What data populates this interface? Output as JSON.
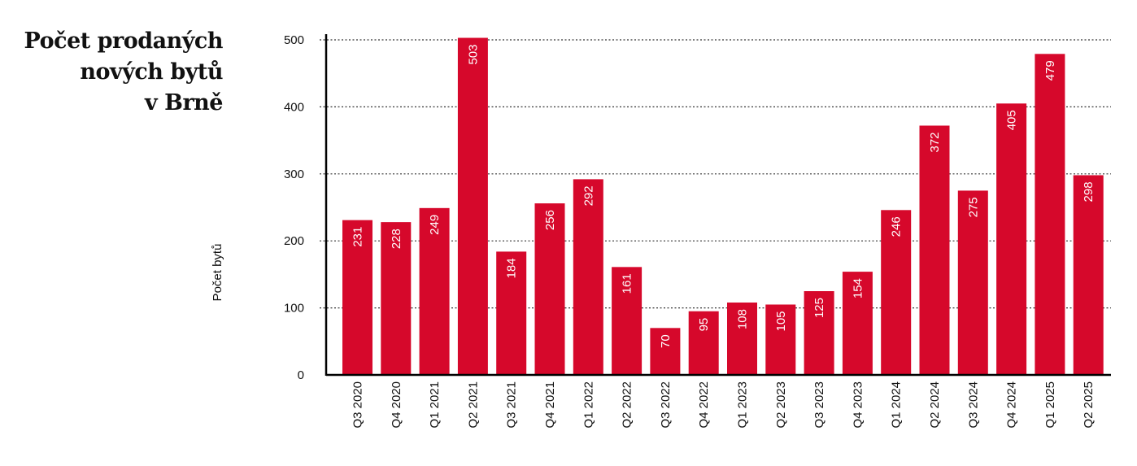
{
  "chart_data": {
    "type": "bar",
    "title_lines": [
      "Počet prodaných",
      "nových bytů",
      "v Brně"
    ],
    "xlabel": "",
    "ylabel": "Počet bytů",
    "ylim": [
      0,
      500
    ],
    "yticks": [
      0,
      100,
      200,
      300,
      400,
      500
    ],
    "grid": true,
    "categories": [
      "Q3 2020",
      "Q4 2020",
      "Q1 2021",
      "Q2 2021",
      "Q3 2021",
      "Q4 2021",
      "Q1 2022",
      "Q2 2022",
      "Q3 2022",
      "Q4 2022",
      "Q1 2023",
      "Q2 2023",
      "Q3 2023",
      "Q4 2023",
      "Q1 2024",
      "Q2 2024",
      "Q3 2024",
      "Q4 2024",
      "Q1 2025",
      "Q2 2025"
    ],
    "values": [
      231,
      228,
      249,
      503,
      184,
      256,
      292,
      161,
      70,
      95,
      108,
      105,
      125,
      154,
      246,
      372,
      275,
      405,
      479,
      298
    ],
    "bar_color": "#d6082b"
  }
}
